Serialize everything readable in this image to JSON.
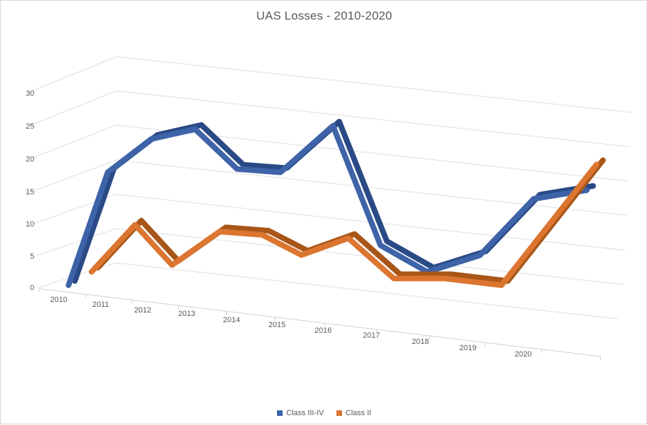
{
  "window": {
    "background_color": "#ffffff",
    "border_color": "#d9d9d9"
  },
  "chart_data": {
    "type": "line",
    "style": "3d-ribbon-perspective",
    "title": "UAS Losses - 2010-2020",
    "title_color": "#595959",
    "categories": [
      "2010",
      "2011",
      "2012",
      "2013",
      "2014",
      "2015",
      "2016",
      "2017",
      "2018",
      "2019",
      "2020"
    ],
    "series": [
      {
        "name": "Class III-IV",
        "color": "#3e63a8",
        "shadow_color": "#2a4a86",
        "values": [
          0,
          17,
          22,
          23.5,
          17.5,
          17,
          24,
          6,
          2,
          4.5,
          13
        ]
      },
      {
        "name": "Class II",
        "color": "#db752f",
        "shadow_color": "#a85618",
        "values": [
          2,
          9,
          3,
          8,
          7.5,
          4.5,
          7,
          1,
          1,
          0,
          18
        ]
      }
    ],
    "xlabel": "",
    "ylabel": "",
    "ylim": [
      0,
      30
    ],
    "yticks": [
      0,
      5,
      10,
      15,
      20,
      25,
      30
    ],
    "grid": true,
    "gridline_color": "#dedede",
    "axis_line_color": "#d0d0d0",
    "tick_label_color": "#595959",
    "legend_position": "bottom"
  }
}
